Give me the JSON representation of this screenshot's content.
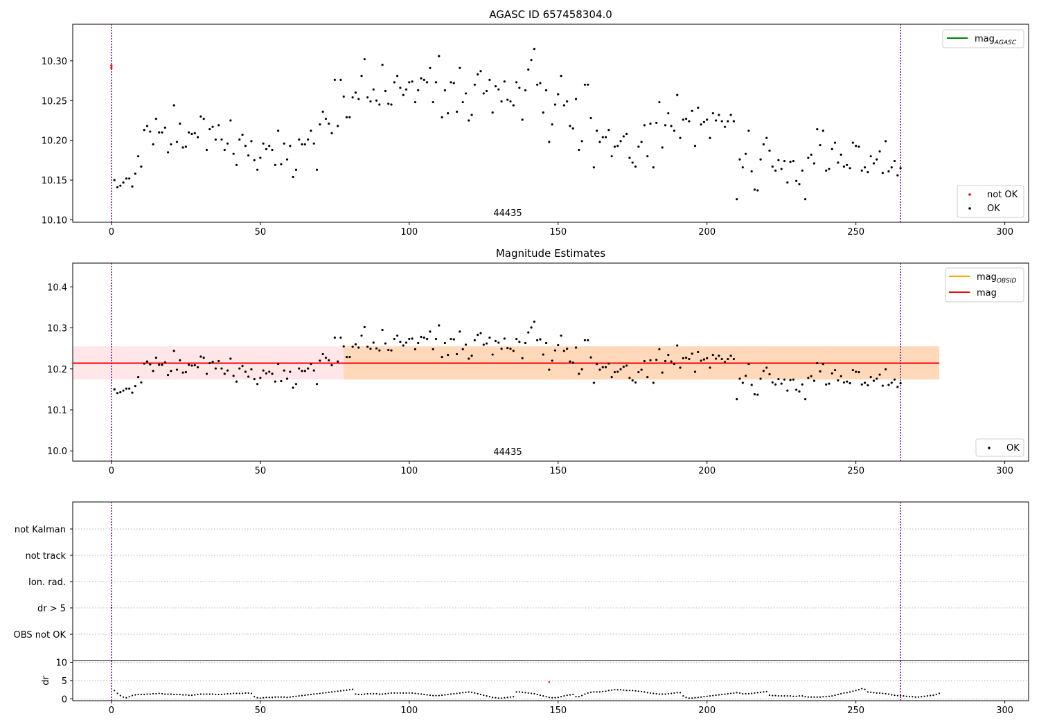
{
  "chart_data": [
    {
      "type": "scatter",
      "title": "AGASC ID 657458304.0",
      "xlabel": "",
      "ylabel": "",
      "xlim": [
        -13,
        308
      ],
      "ylim": [
        10.097,
        10.346
      ],
      "xticks": [
        0,
        50,
        100,
        150,
        200,
        250,
        300
      ],
      "yticks": [
        10.1,
        10.15,
        10.2,
        10.25,
        10.3
      ],
      "ytick_labels": [
        "10.10",
        "10.15",
        "10.20",
        "10.25",
        "10.30"
      ],
      "annotation": "44435",
      "vlines": [
        0,
        265
      ],
      "legend_upper": {
        "placement": "top-right",
        "entries": [
          {
            "label": "mag",
            "subscript": "AGASC",
            "color": "#008000",
            "kind": "line"
          }
        ]
      },
      "legend_lower": {
        "placement": "bottom-right",
        "entries": [
          {
            "label": "not OK",
            "color": "#ff0000",
            "kind": "dot"
          },
          {
            "label": "OK",
            "color": "#000000",
            "kind": "dot"
          }
        ]
      },
      "series": [
        {
          "name": "not OK",
          "color": "#ff0000",
          "x": [
            0,
            0
          ],
          "y": [
            10.291,
            10.294
          ]
        },
        {
          "name": "OK",
          "color": "#000000",
          "source": "shared_ok"
        }
      ]
    },
    {
      "type": "scatter",
      "title": "Magnitude Estimates",
      "xlabel": "",
      "ylabel": "",
      "xlim": [
        -13,
        308
      ],
      "ylim": [
        9.975,
        10.458
      ],
      "xticks": [
        0,
        50,
        100,
        150,
        200,
        250,
        300
      ],
      "yticks": [
        10.0,
        10.1,
        10.2,
        10.3,
        10.4
      ],
      "ytick_labels": [
        "10.0",
        "10.1",
        "10.2",
        "10.3",
        "10.4"
      ],
      "annotation": "44435",
      "vlines": [
        0,
        265
      ],
      "mag_line": {
        "value": 10.214,
        "x0": -13,
        "x1": 278,
        "color": "#ff0000"
      },
      "mag_band": {
        "low": 10.174,
        "high": 10.255,
        "x0": -13,
        "x1": 278,
        "color": "#ffb6c1"
      },
      "obsid_band": {
        "low": 10.174,
        "high": 10.255,
        "x0": 78,
        "x1": 278,
        "color": "#ffa500"
      },
      "legend_upper": {
        "placement": "top-right",
        "entries": [
          {
            "label": "mag",
            "subscript": "OBSID",
            "color": "#ffa500",
            "kind": "line"
          },
          {
            "label": "mag",
            "color": "#ff0000",
            "kind": "line"
          }
        ]
      },
      "legend_lower": {
        "placement": "bottom-right",
        "entries": [
          {
            "label": "OK",
            "color": "#000000",
            "kind": "dot"
          }
        ]
      },
      "series": [
        {
          "name": "OK",
          "color": "#000000",
          "source": "shared_ok"
        }
      ]
    },
    {
      "type": "scatter",
      "title": "",
      "xlabel": "",
      "ylabel": "",
      "category_axis": [
        "OBS not OK",
        "dr > 5",
        "Ion. rad.",
        "not track",
        "not Kalman"
      ],
      "grid": "dotted",
      "vlines": [
        0,
        265
      ],
      "flags": [
        {
          "category": "dr > 5",
          "x": 0
        }
      ]
    },
    {
      "type": "scatter",
      "title": "",
      "xlabel": "",
      "ylabel": "dr",
      "xlim": [
        -13,
        308
      ],
      "ylim": [
        -0.5,
        10.5
      ],
      "xticks": [
        0,
        50,
        100,
        150,
        200,
        250,
        300
      ],
      "yticks": [
        0,
        5,
        10
      ],
      "ytick_labels": [
        "0",
        "5",
        "10"
      ],
      "vlines": [
        0,
        265
      ],
      "outlier": {
        "x": 147,
        "y": 4.6,
        "color": "#ff0000"
      },
      "dr_y": [
        2.3,
        1.5,
        0.9,
        0.5,
        0.3,
        0.6,
        0.9,
        1.1,
        1.2,
        1.2,
        1.2,
        1.3,
        1.3,
        1.4,
        1.4,
        1.5,
        1.4,
        1.3,
        1.3,
        1.3,
        1.2,
        1.2,
        1.2,
        1.1,
        1.1,
        1.0,
        1.0,
        1.1,
        1.2,
        1.3,
        1.3,
        1.3,
        1.3,
        1.3,
        1.2,
        1.2,
        1.2,
        1.3,
        1.4,
        1.4,
        1.5,
        1.5,
        1.5,
        1.5,
        1.6,
        1.6,
        1.5,
        0.6,
        0.3,
        0.2,
        0.3,
        0.4,
        0.4,
        0.4,
        0.5,
        0.5,
        0.5,
        0.5,
        0.4,
        0.5,
        0.6,
        0.7,
        0.8,
        0.9,
        1.0,
        1.1,
        1.2,
        1.3,
        1.4,
        1.5,
        1.6,
        1.7,
        1.8,
        1.9,
        2.0,
        2.1,
        2.2,
        2.3,
        2.4,
        2.5,
        2.6,
        1.3,
        1.2,
        1.2,
        1.3,
        1.4,
        1.4,
        1.4,
        1.4,
        1.3,
        1.3,
        1.4,
        1.5,
        1.6,
        1.6,
        1.6,
        1.6,
        1.6,
        1.6,
        1.6,
        1.6,
        1.5,
        1.4,
        1.3,
        1.2,
        1.1,
        1.0,
        0.9,
        0.9,
        0.9,
        1.0,
        1.1,
        1.2,
        1.3,
        1.4,
        1.5,
        1.6,
        1.7,
        1.8,
        1.9,
        1.8,
        1.6,
        1.4,
        1.2,
        1.0,
        0.8,
        0.6,
        0.4,
        0.3,
        0.2,
        0.2,
        0.3,
        0.4,
        0.5,
        0.6,
        1.9,
        1.9,
        1.8,
        1.7,
        1.6,
        1.5,
        1.4,
        1.2,
        1.0,
        0.8,
        0.6,
        0.4,
        0.3,
        0.3,
        0.4,
        0.6,
        0.8,
        1.0,
        1.1,
        1.2,
        0.6,
        0.6,
        0.9,
        1.3,
        1.6,
        1.8,
        1.9,
        1.9,
        1.9,
        2.0,
        2.1,
        2.3,
        2.4,
        2.5,
        2.5,
        2.5,
        2.4,
        2.3,
        2.3,
        2.3,
        2.2,
        2.1,
        2.0,
        1.9,
        1.7,
        1.6,
        1.5,
        1.4,
        1.3,
        1.3,
        1.3,
        1.4,
        1.5,
        1.6,
        1.7,
        1.7,
        0.8,
        0.4,
        0.2,
        0.2,
        0.3,
        0.4,
        0.5,
        0.6,
        0.7,
        0.8,
        0.9,
        1.0,
        1.1,
        1.2,
        1.3,
        1.4,
        1.5,
        1.6,
        1.7,
        1.6,
        1.4,
        1.4,
        1.4,
        1.5,
        1.6,
        1.7,
        1.8,
        1.9,
        2.0,
        1.0,
        0.9,
        0.9,
        0.8,
        0.8,
        0.8,
        0.8,
        0.8,
        0.7,
        0.7,
        0.8,
        0.8,
        0.6,
        0.5,
        0.5,
        0.5,
        0.5,
        0.5,
        0.6,
        0.6,
        0.7,
        0.8,
        1.0,
        1.2,
        1.4,
        1.6,
        1.7,
        1.9,
        2.1,
        2.3,
        2.5,
        2.8,
        2.6,
        1.9,
        1.8,
        1.7,
        1.6,
        1.6,
        1.5,
        1.4,
        1.3,
        1.1,
        1.0,
        0.9,
        0.9,
        0.8,
        0.7,
        0.6,
        0.6,
        0.5,
        0.5,
        0.6,
        0.7,
        0.8,
        0.9,
        1.0,
        1.2,
        1.5
      ]
    }
  ],
  "shared_ok": {
    "x": [
      1,
      2,
      3,
      4,
      5,
      6,
      7,
      8,
      9,
      10,
      11,
      12,
      13,
      14,
      15,
      16,
      17,
      18,
      19,
      20,
      21,
      22,
      23,
      24,
      25,
      26,
      27,
      28,
      29,
      30,
      31,
      32,
      33,
      34,
      35,
      36,
      37,
      38,
      39,
      40,
      41,
      42,
      43,
      44,
      45,
      46,
      47,
      48,
      49,
      50,
      51,
      52,
      53,
      54,
      55,
      56,
      57,
      58,
      59,
      60,
      61,
      62,
      63,
      64,
      65,
      66,
      67,
      68,
      69,
      70,
      71,
      72,
      73,
      74,
      75,
      76,
      77,
      78,
      79,
      80,
      81,
      82,
      83,
      84,
      85,
      86,
      87,
      88,
      89,
      90,
      91,
      92,
      93,
      94,
      95,
      96,
      97,
      98,
      99,
      100,
      101,
      102,
      103,
      104,
      105,
      106,
      107,
      108,
      109,
      110,
      111,
      112,
      113,
      114,
      115,
      116,
      117,
      118,
      119,
      120,
      121,
      122,
      123,
      124,
      125,
      126,
      127,
      128,
      129,
      130,
      131,
      132,
      133,
      134,
      135,
      136,
      137,
      138,
      139,
      140,
      141,
      142,
      143,
      144,
      145,
      146,
      147,
      148,
      149,
      150,
      151,
      152,
      153,
      154,
      155,
      156,
      157,
      158,
      159,
      160,
      161,
      162,
      163,
      164,
      165,
      166,
      167,
      168,
      169,
      170,
      171,
      172,
      173,
      174,
      175,
      176,
      177,
      178,
      179,
      180,
      181,
      182,
      183,
      184,
      185,
      186,
      187,
      188,
      189,
      190,
      191,
      192,
      193,
      194,
      195,
      196,
      197,
      198,
      199,
      200,
      201,
      202,
      203,
      204,
      205,
      206,
      207,
      208,
      209,
      210,
      211,
      212,
      213,
      214,
      215,
      216,
      217,
      218,
      219,
      220,
      221,
      222,
      223,
      224,
      225,
      226,
      227,
      228,
      229,
      230,
      231,
      232,
      233,
      234,
      235,
      236,
      237,
      238,
      239,
      240,
      241,
      242,
      243,
      244,
      245,
      246,
      247,
      248,
      249,
      250,
      251,
      252,
      253,
      254,
      255,
      256,
      257,
      258,
      259,
      260,
      261,
      262,
      263,
      264,
      265
    ],
    "y": [
      10.15,
      10.141,
      10.143,
      10.147,
      10.152,
      10.152,
      10.142,
      10.158,
      10.18,
      10.167,
      10.213,
      10.218,
      10.211,
      10.195,
      10.227,
      10.21,
      10.21,
      10.216,
      10.185,
      10.195,
      10.244,
      10.198,
      10.221,
      10.191,
      10.192,
      10.21,
      10.208,
      10.209,
      10.204,
      10.23,
      10.227,
      10.188,
      10.214,
      10.217,
      10.201,
      10.219,
      10.201,
      10.188,
      10.196,
      10.225,
      10.183,
      10.169,
      10.201,
      10.207,
      10.193,
      10.181,
      10.199,
      10.175,
      10.163,
      10.178,
      10.196,
      10.189,
      10.193,
      10.188,
      10.169,
      10.212,
      10.17,
      10.196,
      10.176,
      10.193,
      10.154,
      10.163,
      10.201,
      10.195,
      10.195,
      10.201,
      10.212,
      10.196,
      10.163,
      10.22,
      10.236,
      10.227,
      10.221,
      10.209,
      10.276,
      10.218,
      10.276,
      10.255,
      10.229,
      10.229,
      10.254,
      10.26,
      10.252,
      10.281,
      10.302,
      10.254,
      10.249,
      10.264,
      10.25,
      10.245,
      10.295,
      10.262,
      10.246,
      10.245,
      10.273,
      10.281,
      10.266,
      10.257,
      10.264,
      10.273,
      10.274,
      10.248,
      10.263,
      10.278,
      10.276,
      10.273,
      10.291,
      10.248,
      10.273,
      10.306,
      10.229,
      10.263,
      10.234,
      10.273,
      10.272,
      10.236,
      10.291,
      10.248,
      10.259,
      10.225,
      10.232,
      10.27,
      10.283,
      10.287,
      10.259,
      10.262,
      10.276,
      10.235,
      10.268,
      10.264,
      10.249,
      10.274,
      10.251,
      10.249,
      10.244,
      10.273,
      10.266,
      10.226,
      10.263,
      10.289,
      10.301,
      10.315,
      10.27,
      10.272,
      10.235,
      10.263,
      10.198,
      10.22,
      10.245,
      10.258,
      10.281,
      10.244,
      10.249,
      10.218,
      10.215,
      10.252,
      10.188,
      10.199,
      10.27,
      10.27,
      10.228,
      10.166,
      10.212,
      10.198,
      10.204,
      10.204,
      10.213,
      10.18,
      10.192,
      10.193,
      10.199,
      10.205,
      10.208,
      10.178,
      10.172,
      10.167,
      10.192,
      10.198,
      10.219,
      10.18,
      10.221,
      10.166,
      10.222,
      10.248,
      10.191,
      10.219,
      10.234,
      10.218,
      10.212,
      10.257,
      10.203,
      10.226,
      10.227,
      10.224,
      10.237,
      10.193,
      10.241,
      10.22,
      10.223,
      10.226,
      10.203,
      10.234,
      10.225,
      10.232,
      10.224,
      10.217,
      10.224,
      10.232,
      10.224,
      10.126,
      10.176,
      10.166,
      10.183,
      10.212,
      10.161,
      10.138,
      10.137,
      10.176,
      10.195,
      10.203,
      10.187,
      10.167,
      10.162,
      10.175,
      10.164,
      10.174,
      10.147,
      10.173,
      10.174,
      10.149,
      10.145,
      10.162,
      10.126,
      10.178,
      10.182,
      10.171,
      10.214,
      10.194,
      10.212,
      10.162,
      10.164,
      10.189,
      10.197,
      10.172,
      10.182,
      10.167,
      10.169,
      10.165,
      10.197,
      10.193,
      10.192,
      10.162,
      10.166,
      10.16,
      10.18,
      10.171,
      10.176,
      10.186,
      10.159,
      10.199,
      10.161,
      10.166,
      10.174,
      10.156,
      10.165
    ]
  }
}
